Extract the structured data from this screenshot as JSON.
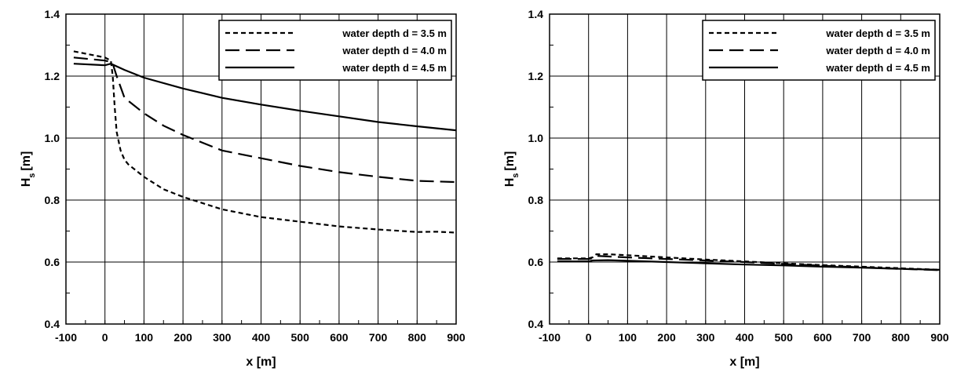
{
  "chart_data": [
    {
      "type": "line",
      "title": "",
      "xlabel": "x [m]",
      "ylabel": {
        "main": "H",
        "sub": "s",
        "unit": "[m]"
      },
      "xlim": [
        -100,
        900
      ],
      "ylim": [
        0.4,
        1.4
      ],
      "xticks": [
        -100,
        0,
        100,
        200,
        300,
        400,
        500,
        600,
        700,
        800,
        900
      ],
      "xtick_labels": [
        "-100",
        "0",
        "100",
        "200",
        "300",
        "400",
        "500",
        "600",
        "700",
        "800",
        "900"
      ],
      "yticks": [
        0.4,
        0.6,
        0.8,
        1.0,
        1.2,
        1.4
      ],
      "ytick_labels": [
        "0.4",
        "0.6",
        "0.8",
        "1.0",
        "1.2",
        "1.4"
      ],
      "grid": "vertical lines at x ticks, horizontal lines at y ticks",
      "legend_position": "top-right",
      "series": [
        {
          "name": "water depth d = 3.5 m",
          "dash": "short-dash",
          "x": [
            -80,
            0,
            15,
            20,
            25,
            30,
            40,
            50,
            60,
            80,
            100,
            150,
            200,
            300,
            400,
            500,
            600,
            700,
            800,
            850,
            900
          ],
          "y": [
            1.28,
            1.26,
            1.25,
            1.2,
            1.1,
            1.02,
            0.96,
            0.93,
            0.915,
            0.895,
            0.875,
            0.835,
            0.81,
            0.77,
            0.745,
            0.73,
            0.715,
            0.705,
            0.697,
            0.698,
            0.695
          ]
        },
        {
          "name": "water depth d = 4.0 m",
          "dash": "long-dash",
          "x": [
            -80,
            0,
            15,
            20,
            30,
            50,
            100,
            150,
            200,
            300,
            400,
            500,
            600,
            700,
            800,
            900
          ],
          "y": [
            1.26,
            1.25,
            1.245,
            1.24,
            1.2,
            1.13,
            1.08,
            1.04,
            1.01,
            0.96,
            0.935,
            0.91,
            0.89,
            0.875,
            0.862,
            0.858
          ]
        },
        {
          "name": "water depth d = 4.5 m",
          "dash": "solid",
          "x": [
            -80,
            0,
            15,
            50,
            100,
            200,
            300,
            400,
            500,
            600,
            700,
            800,
            900
          ],
          "y": [
            1.24,
            1.235,
            1.24,
            1.22,
            1.195,
            1.16,
            1.13,
            1.108,
            1.088,
            1.07,
            1.052,
            1.038,
            1.025
          ]
        }
      ]
    },
    {
      "type": "line",
      "title": "",
      "xlabel": "x [m]",
      "ylabel": {
        "main": "H",
        "sub": "s",
        "unit": "[m]"
      },
      "xlim": [
        -100,
        900
      ],
      "ylim": [
        0.4,
        1.4
      ],
      "xticks": [
        -100,
        0,
        100,
        200,
        300,
        400,
        500,
        600,
        700,
        800,
        900
      ],
      "xtick_labels": [
        "-100",
        "0",
        "100",
        "200",
        "300",
        "400",
        "500",
        "600",
        "700",
        "800",
        "900"
      ],
      "yticks": [
        0.4,
        0.6,
        0.8,
        1.0,
        1.2,
        1.4
      ],
      "ytick_labels": [
        "0.4",
        "0.6",
        "0.8",
        "1.0",
        "1.2",
        "1.4"
      ],
      "grid": "vertical lines at x ticks, horizontal lines at y ticks",
      "legend_position": "top-right",
      "series": [
        {
          "name": "water depth d = 3.5 m",
          "dash": "short-dash",
          "x": [
            -80,
            0,
            10,
            20,
            50,
            100,
            200,
            300,
            400,
            500,
            600,
            700,
            800,
            900
          ],
          "y": [
            0.612,
            0.612,
            0.615,
            0.625,
            0.625,
            0.622,
            0.615,
            0.608,
            0.602,
            0.596,
            0.59,
            0.585,
            0.58,
            0.575
          ]
        },
        {
          "name": "water depth d = 4.0 m",
          "dash": "long-dash",
          "x": [
            -80,
            0,
            10,
            20,
            50,
            100,
            200,
            300,
            400,
            500,
            600,
            700,
            800,
            900
          ],
          "y": [
            0.61,
            0.61,
            0.613,
            0.62,
            0.618,
            0.615,
            0.61,
            0.605,
            0.6,
            0.594,
            0.588,
            0.583,
            0.578,
            0.574
          ]
        },
        {
          "name": "water depth d = 4.5 m",
          "dash": "solid",
          "x": [
            -80,
            0,
            10,
            50,
            100,
            200,
            300,
            400,
            500,
            600,
            700,
            800,
            900
          ],
          "y": [
            0.602,
            0.602,
            0.605,
            0.606,
            0.604,
            0.6,
            0.596,
            0.592,
            0.589,
            0.585,
            0.582,
            0.578,
            0.575
          ]
        }
      ]
    }
  ]
}
